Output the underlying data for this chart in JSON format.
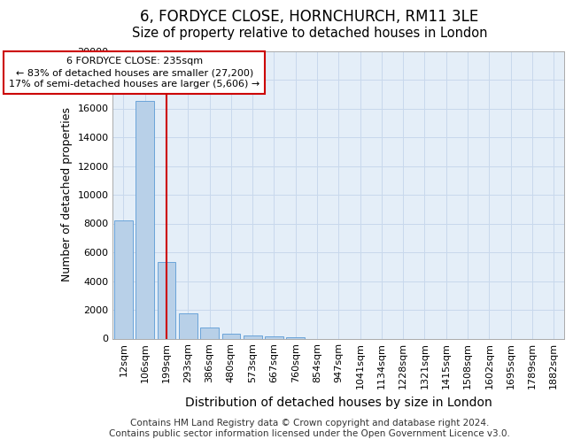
{
  "title": "6, FORDYCE CLOSE, HORNCHURCH, RM11 3LE",
  "subtitle": "Size of property relative to detached houses in London",
  "xlabel": "Distribution of detached houses by size in London",
  "ylabel": "Number of detached properties",
  "categories": [
    "12sqm",
    "106sqm",
    "199sqm",
    "293sqm",
    "386sqm",
    "480sqm",
    "573sqm",
    "667sqm",
    "760sqm",
    "854sqm",
    "947sqm",
    "1041sqm",
    "1134sqm",
    "1228sqm",
    "1321sqm",
    "1415sqm",
    "1508sqm",
    "1602sqm",
    "1695sqm",
    "1789sqm",
    "1882sqm"
  ],
  "values": [
    8200,
    16500,
    5300,
    1750,
    800,
    350,
    200,
    150,
    100,
    0,
    0,
    0,
    0,
    0,
    0,
    0,
    0,
    0,
    0,
    0,
    0
  ],
  "bar_color": "#b8d0e8",
  "bar_edge_color": "#5b9bd5",
  "vline_x": 2,
  "vline_color": "#cc0000",
  "annotation_text": "6 FORDYCE CLOSE: 235sqm\n← 83% of detached houses are smaller (27,200)\n17% of semi-detached houses are larger (5,606) →",
  "annotation_box_color": "#ffffff",
  "annotation_box_edge_color": "#cc0000",
  "ylim": [
    0,
    20000
  ],
  "yticks": [
    0,
    2000,
    4000,
    6000,
    8000,
    10000,
    12000,
    14000,
    16000,
    18000,
    20000
  ],
  "grid_color": "#c8d8ec",
  "plot_bg_color": "#e4eef8",
  "footer": "Contains HM Land Registry data © Crown copyright and database right 2024.\nContains public sector information licensed under the Open Government Licence v3.0.",
  "title_fontsize": 12,
  "subtitle_fontsize": 10.5,
  "xlabel_fontsize": 10,
  "ylabel_fontsize": 9,
  "tick_fontsize": 8,
  "footer_fontsize": 7.5
}
